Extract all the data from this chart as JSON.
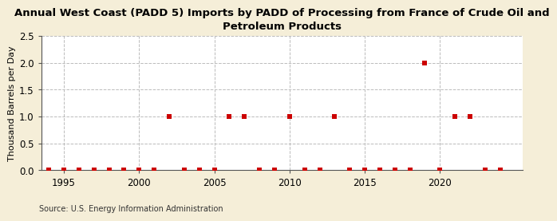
{
  "title": "Annual West Coast (PADD 5) Imports by PADD of Processing from France of Crude Oil and\nPetroleum Products",
  "ylabel": "Thousand Barrels per Day",
  "source": "Source: U.S. Energy Information Administration",
  "background_color": "#f5eed8",
  "plot_background_color": "#ffffff",
  "ylim": [
    0.0,
    2.5
  ],
  "yticks": [
    0.0,
    0.5,
    1.0,
    1.5,
    2.0,
    2.5
  ],
  "xlim": [
    1993.5,
    2025.5
  ],
  "xticks": [
    1995,
    2000,
    2005,
    2010,
    2015,
    2020
  ],
  "years": [
    1994,
    1995,
    1996,
    1997,
    1998,
    1999,
    2000,
    2001,
    2002,
    2003,
    2004,
    2005,
    2006,
    2007,
    2008,
    2009,
    2010,
    2011,
    2012,
    2013,
    2014,
    2015,
    2016,
    2017,
    2018,
    2019,
    2020,
    2021,
    2022,
    2023,
    2024
  ],
  "values": [
    0,
    0,
    0,
    0,
    0,
    0,
    0,
    0,
    1,
    0,
    0,
    0,
    1,
    1,
    0,
    0,
    1,
    0,
    0,
    1,
    0,
    0,
    0,
    0,
    0,
    2,
    0,
    1,
    1,
    0,
    0
  ],
  "marker_color": "#cc0000",
  "marker_size": 4,
  "grid_color": "#bbbbbb",
  "grid_linestyle": "--",
  "title_fontsize": 9.5,
  "tick_fontsize": 8.5,
  "ylabel_fontsize": 8
}
